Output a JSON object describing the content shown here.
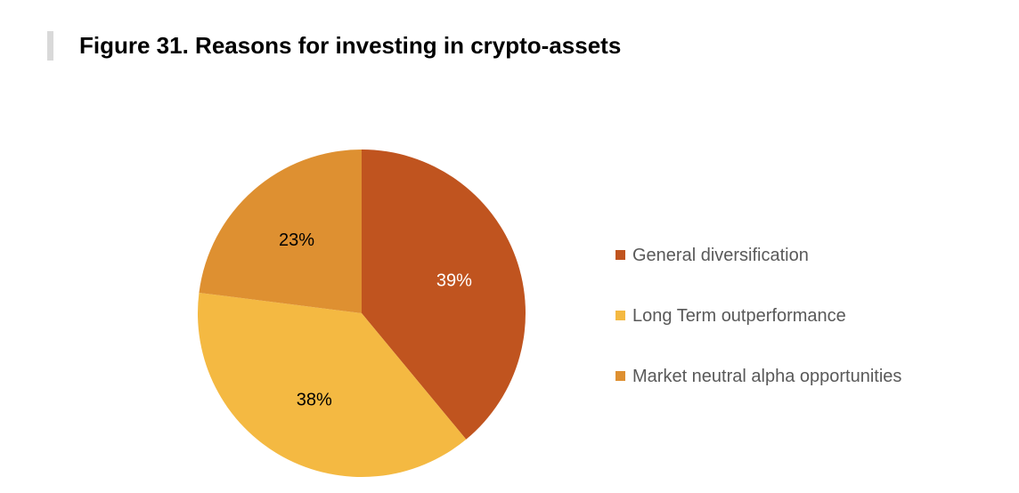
{
  "figure": {
    "title": "Figure 31. Reasons for investing in crypto-assets"
  },
  "chart_data": {
    "type": "pie",
    "title": "Figure 31. Reasons for investing in crypto-assets",
    "slices": [
      {
        "label": "General diversification",
        "value": 39,
        "display": "39%",
        "color": "#c0541f",
        "label_color": "#ffffff"
      },
      {
        "label": "Long Term outperformance",
        "value": 38,
        "display": "38%",
        "color": "#f4b942",
        "label_color": "#000000"
      },
      {
        "label": "Market neutral alpha opportunities",
        "value": 23,
        "display": "23%",
        "color": "#de9031",
        "label_color": "#000000"
      }
    ],
    "start": "12 o'clock",
    "direction": "clockwise",
    "legend_position": "right"
  }
}
